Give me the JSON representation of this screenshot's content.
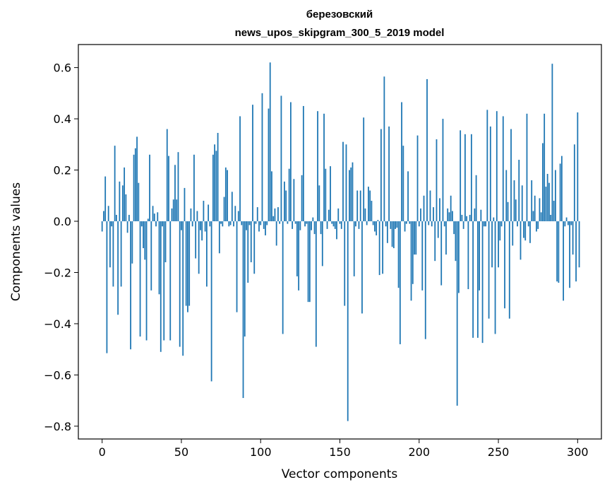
{
  "chart_data": {
    "type": "bar",
    "title_line1": "березовский",
    "title_line2": "news_upos_skipgram_300_5_2019 model",
    "xlabel": "Vector components",
    "ylabel": "Components values",
    "xlim": [
      -15,
      315
    ],
    "ylim": [
      -0.85,
      0.69
    ],
    "x_ticks": [
      0,
      50,
      100,
      150,
      200,
      250,
      300
    ],
    "x_tick_labels": [
      "0",
      "50",
      "100",
      "150",
      "200",
      "250",
      "300"
    ],
    "y_ticks": [
      -0.8,
      -0.6,
      -0.4,
      -0.2,
      0.0,
      0.2,
      0.4,
      0.6
    ],
    "y_tick_labels": [
      "−0.8",
      "−0.6",
      "−0.4",
      "−0.2",
      "0.0",
      "0.2",
      "0.4",
      "0.6"
    ],
    "grid": false,
    "bar_color": "#1f77b4",
    "values": [
      -0.04,
      0.04,
      0.175,
      -0.515,
      0.06,
      -0.18,
      -0.02,
      -0.255,
      0.295,
      0.025,
      -0.365,
      0.155,
      -0.255,
      0.14,
      0.21,
      0.105,
      -0.045,
      0.025,
      -0.5,
      -0.165,
      0.26,
      0.285,
      0.33,
      0.15,
      -0.45,
      -0.02,
      -0.105,
      -0.15,
      -0.465,
      0.01,
      0.26,
      -0.27,
      0.06,
      0.03,
      -0.02,
      0.035,
      -0.285,
      -0.51,
      -0.02,
      -0.465,
      -0.16,
      0.36,
      0.255,
      -0.465,
      0.05,
      0.085,
      0.22,
      0.085,
      0.27,
      -0.49,
      -0.035,
      -0.525,
      0.13,
      -0.33,
      -0.355,
      -0.33,
      0.05,
      -0.02,
      0.26,
      -0.145,
      0.04,
      -0.205,
      -0.035,
      -0.075,
      0.08,
      -0.04,
      -0.255,
      0.065,
      -0.02,
      -0.625,
      0.26,
      0.3,
      0.275,
      0.345,
      -0.125,
      -0.01,
      -0.02,
      0.095,
      0.21,
      0.2,
      -0.02,
      -0.015,
      0.115,
      -0.02,
      0.06,
      -0.355,
      0.04,
      0.41,
      -0.015,
      -0.69,
      -0.45,
      -0.035,
      -0.24,
      -0.015,
      -0.16,
      0.455,
      -0.205,
      -0.01,
      0.055,
      -0.04,
      -0.015,
      0.5,
      -0.03,
      -0.055,
      -0.015,
      0.44,
      0.62,
      0.195,
      0.02,
      0.05,
      -0.095,
      0.055,
      -0.01,
      0.49,
      -0.44,
      0.155,
      0.12,
      -0.01,
      0.205,
      0.465,
      -0.03,
      0.165,
      -0.01,
      -0.215,
      -0.27,
      -0.035,
      0.18,
      0.45,
      -0.02,
      -0.01,
      -0.315,
      -0.315,
      -0.035,
      0.015,
      -0.05,
      -0.49,
      0.43,
      0.14,
      -0.05,
      -0.175,
      0.42,
      0.205,
      -0.03,
      0.045,
      0.215,
      -0.01,
      -0.02,
      -0.03,
      -0.07,
      0.05,
      -0.01,
      -0.03,
      0.31,
      -0.33,
      0.3,
      -0.78,
      0.2,
      0.21,
      0.23,
      -0.215,
      -0.02,
      0.12,
      -0.03,
      0.12,
      -0.36,
      0.405,
      0.05,
      -0.015,
      0.135,
      0.12,
      0.08,
      -0.015,
      -0.04,
      -0.055,
      0.005,
      -0.21,
      0.36,
      -0.205,
      0.565,
      -0.02,
      -0.085,
      0.37,
      -0.03,
      -0.1,
      -0.105,
      -0.03,
      -0.025,
      -0.26,
      -0.48,
      0.465,
      0.295,
      -0.04,
      -0.01,
      0.195,
      -0.01,
      -0.31,
      -0.245,
      -0.13,
      -0.13,
      0.335,
      -0.02,
      0.05,
      -0.27,
      0.1,
      -0.46,
      0.555,
      -0.015,
      0.12,
      -0.02,
      0.055,
      -0.155,
      0.32,
      -0.065,
      0.09,
      -0.25,
      0.4,
      -0.02,
      -0.13,
      0.05,
      0.035,
      0.1,
      0.04,
      -0.05,
      -0.155,
      -0.72,
      -0.28,
      0.355,
      0.025,
      -0.03,
      0.34,
      0.02,
      -0.265,
      0.025,
      0.34,
      -0.455,
      0.05,
      0.18,
      -0.455,
      -0.27,
      0.045,
      -0.475,
      -0.02,
      -0.02,
      0.435,
      -0.38,
      0.37,
      -0.18,
      0.015,
      -0.44,
      0.43,
      -0.18,
      -0.075,
      -0.02,
      0.41,
      -0.34,
      0.2,
      0.075,
      -0.38,
      0.36,
      -0.095,
      0.16,
      0.085,
      -0.02,
      0.24,
      -0.15,
      0.14,
      -0.065,
      -0.075,
      0.42,
      -0.02,
      -0.085,
      0.16,
      0.04,
      0.1,
      -0.04,
      -0.03,
      0.09,
      0.035,
      0.305,
      0.42,
      0.135,
      0.185,
      0.15,
      0.025,
      0.615,
      0.08,
      0.2,
      -0.235,
      -0.24,
      0.225,
      0.255,
      -0.31,
      -0.02,
      0.015,
      -0.015,
      -0.26,
      -0.015,
      -0.13,
      0.3,
      -0.235,
      0.425,
      -0.18
    ]
  }
}
